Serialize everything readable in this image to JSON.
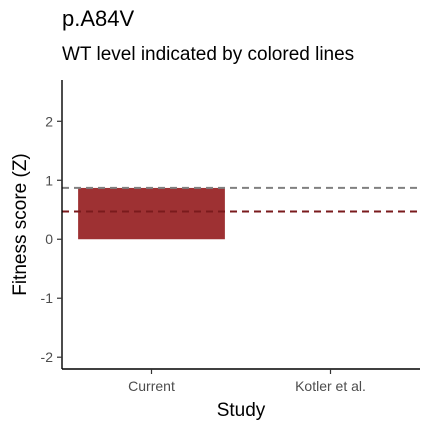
{
  "chart_data": {
    "type": "bar",
    "title": "p.A84V",
    "subtitle": "WT level indicated by colored lines",
    "xlabel": "Study",
    "ylabel": "Fitness score (Z)",
    "categories": [
      "Current",
      "Kotler et al."
    ],
    "values": [
      0.87,
      null
    ],
    "bar_color": "#9e3133",
    "ylim": [
      -2.2,
      2.7
    ],
    "yticks": [
      -2,
      -1,
      0,
      1,
      2
    ],
    "ytick_labels": [
      "-2",
      "-1",
      "0",
      "1",
      "2"
    ],
    "reference_lines": [
      {
        "y": 0.87,
        "color": "#808080",
        "style": "dashed"
      },
      {
        "y": 0.47,
        "color": "#7a1a1c",
        "style": "dashed"
      }
    ],
    "grid": false,
    "legend": "none"
  }
}
